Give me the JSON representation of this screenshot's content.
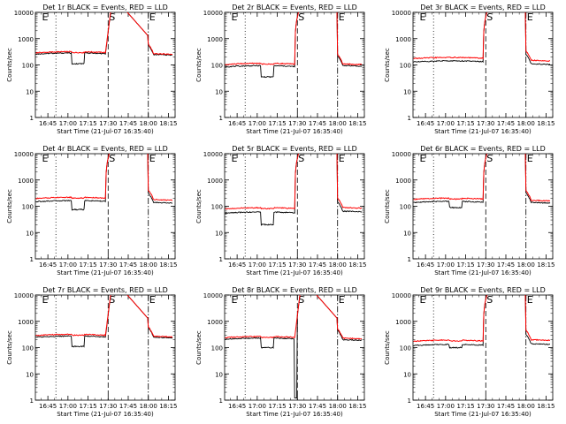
{
  "chart_data": {
    "type": "line",
    "shared": {
      "xlabel": "Start Time (21-Jul-07 16:35:40)",
      "ylabel": "Counts/sec",
      "x_tick_labels": [
        "16:45",
        "17:00",
        "17:15",
        "17:30",
        "17:45",
        "18:00",
        "18:15"
      ],
      "x_tick_minutes": [
        45,
        60,
        75,
        90,
        105,
        120,
        135
      ],
      "xlim_minutes": [
        35.67,
        140
      ],
      "y_tick_labels": [
        "1",
        "10",
        "100",
        "1000",
        "10000"
      ],
      "y_tick_values": [
        1,
        10,
        100,
        1000,
        10000
      ],
      "ylim": [
        1,
        10000
      ],
      "y_scale": "log",
      "markers": [
        {
          "label": "E",
          "x_minutes": 40
        },
        {
          "label": "S",
          "x_minutes": 90
        },
        {
          "label": "E",
          "x_minutes": 120
        }
      ],
      "vlines": [
        {
          "x_minutes": 51,
          "style": "dotted"
        },
        {
          "x_minutes": 90,
          "style": "dashed"
        },
        {
          "x_minutes": 120,
          "style": "dashdot"
        }
      ],
      "colors": {
        "events": "#000000",
        "lld": "#ff0000"
      }
    },
    "panels": [
      {
        "title": "Det 1r BLACK = Events, RED = LLD",
        "events_base": 260,
        "lld_base": 290,
        "dip": [
          63,
          72,
          110
        ],
        "flare_shape": "peak",
        "flare_peak": 12000,
        "post": 250,
        "post_lld": 270
      },
      {
        "title": "Det 2r BLACK = Events, RED = LLD",
        "events_base": 85,
        "lld_base": 105,
        "dip": [
          63,
          72,
          35
        ],
        "flare_shape": "spike",
        "flare_peak": 10000,
        "post": 95,
        "post_lld": 110
      },
      {
        "title": "Det 3r BLACK = Events, RED = LLD",
        "events_base": 130,
        "lld_base": 175,
        "dip": null,
        "flare_shape": "spike",
        "flare_peak": 10000,
        "post": 110,
        "post_lld": 150
      },
      {
        "title": "Det 4r BLACK = Events, RED = LLD",
        "events_base": 150,
        "lld_base": 200,
        "dip": [
          63,
          72,
          75
        ],
        "flare_shape": "spike",
        "flare_peak": 10000,
        "post": 140,
        "post_lld": 180
      },
      {
        "title": "Det 5r BLACK = Events, RED = LLD",
        "events_base": 55,
        "lld_base": 80,
        "dip": [
          63,
          72,
          20
        ],
        "flare_shape": "spike",
        "flare_peak": 10000,
        "post": 65,
        "post_lld": 90
      },
      {
        "title": "Det 6r BLACK = Events, RED = LLD",
        "events_base": 140,
        "lld_base": 185,
        "dip": [
          63,
          72,
          90
        ],
        "flare_shape": "spike",
        "flare_peak": 10000,
        "post": 140,
        "post_lld": 170
      },
      {
        "title": "Det 7r BLACK = Events, RED = LLD",
        "events_base": 250,
        "lld_base": 290,
        "dip": [
          63,
          72,
          110
        ],
        "flare_shape": "peak",
        "flare_peak": 12000,
        "post": 250,
        "post_lld": 270
      },
      {
        "title": "Det 8r BLACK = Events, RED = LLD",
        "events_base": 210,
        "lld_base": 240,
        "dip": [
          63,
          72,
          100
        ],
        "flare_shape": "peak_drop",
        "flare_peak": 12000,
        "post": 200,
        "post_lld": 230
      },
      {
        "title": "Det 9r BLACK = Events, RED = LLD",
        "events_base": 120,
        "lld_base": 175,
        "dip": [
          63,
          72,
          100
        ],
        "flare_shape": "spike",
        "flare_peak": 10000,
        "post": 140,
        "post_lld": 200
      }
    ]
  }
}
